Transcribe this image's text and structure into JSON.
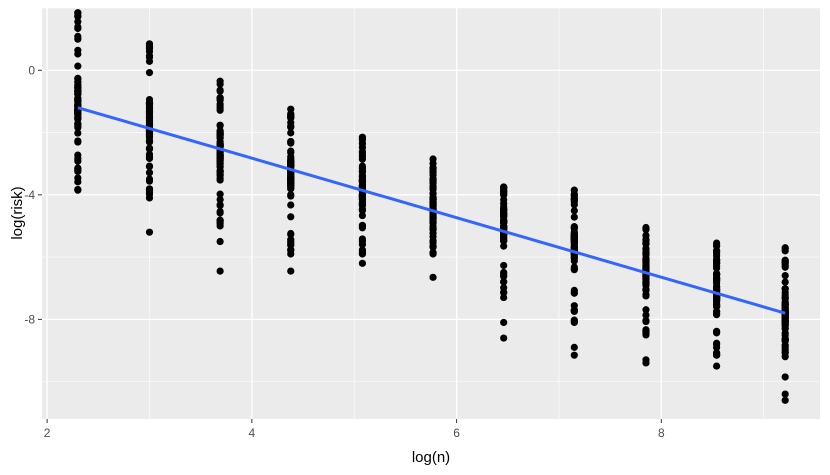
{
  "chart_data": {
    "type": "scatter",
    "title": "",
    "xlabel": "log(n)",
    "ylabel": "log(risk)",
    "xlim": [
      1.95,
      9.55
    ],
    "ylim": [
      -11.2,
      2.0
    ],
    "x_ticks": [
      {
        "value": 2,
        "label": "2"
      },
      {
        "value": 4,
        "label": "4"
      },
      {
        "value": 6,
        "label": "6"
      },
      {
        "value": 8,
        "label": "8"
      }
    ],
    "y_ticks": [
      {
        "value": 0,
        "label": "0"
      },
      {
        "value": -4,
        "label": "-4"
      },
      {
        "value": -8,
        "label": "-8"
      }
    ],
    "grid": true,
    "panel_background": "#ebebeb",
    "grid_color": "#ffffff",
    "point_color": "#000000",
    "trend_color": "#3366ff",
    "trend_line": {
      "x": [
        2.3,
        9.21
      ],
      "y": [
        -1.2,
        -7.8
      ]
    },
    "groups": [
      {
        "x": 2.3,
        "center": -1.2,
        "spread": 1.0,
        "top": 1.85,
        "bottom": -3.85,
        "low_outliers": []
      },
      {
        "x": 3.0,
        "center": -1.8,
        "spread": 0.9,
        "top": 0.85,
        "bottom": -4.1,
        "low_outliers": [
          -5.2
        ]
      },
      {
        "x": 3.69,
        "center": -2.5,
        "spread": 0.9,
        "top": -0.35,
        "bottom": -5.0,
        "low_outliers": [
          -5.5,
          -6.45
        ]
      },
      {
        "x": 4.38,
        "center": -3.2,
        "spread": 0.8,
        "top": -1.25,
        "bottom": -5.9,
        "low_outliers": [
          -6.45
        ]
      },
      {
        "x": 5.08,
        "center": -3.8,
        "spread": 0.8,
        "top": -2.15,
        "bottom": -5.9,
        "low_outliers": [
          -6.2
        ]
      },
      {
        "x": 5.77,
        "center": -4.4,
        "spread": 0.7,
        "top": -2.85,
        "bottom": -5.9,
        "low_outliers": [
          -6.65
        ]
      },
      {
        "x": 6.46,
        "center": -5.0,
        "spread": 0.7,
        "top": -3.75,
        "bottom": -7.3,
        "low_outliers": [
          -8.1,
          -8.6
        ]
      },
      {
        "x": 7.15,
        "center": -5.7,
        "spread": 0.7,
        "top": -3.85,
        "bottom": -8.1,
        "low_outliers": [
          -8.9,
          -9.15
        ]
      },
      {
        "x": 7.85,
        "center": -6.4,
        "spread": 0.7,
        "top": -5.05,
        "bottom": -8.5,
        "low_outliers": [
          -9.3,
          -9.4
        ]
      },
      {
        "x": 8.54,
        "center": -7.1,
        "spread": 0.7,
        "top": -5.55,
        "bottom": -9.15,
        "low_outliers": [
          -9.5
        ]
      },
      {
        "x": 9.21,
        "center": -7.8,
        "spread": 0.8,
        "top": -5.7,
        "bottom": -9.2,
        "low_outliers": [
          -9.85,
          -10.4,
          -10.6
        ]
      }
    ]
  }
}
